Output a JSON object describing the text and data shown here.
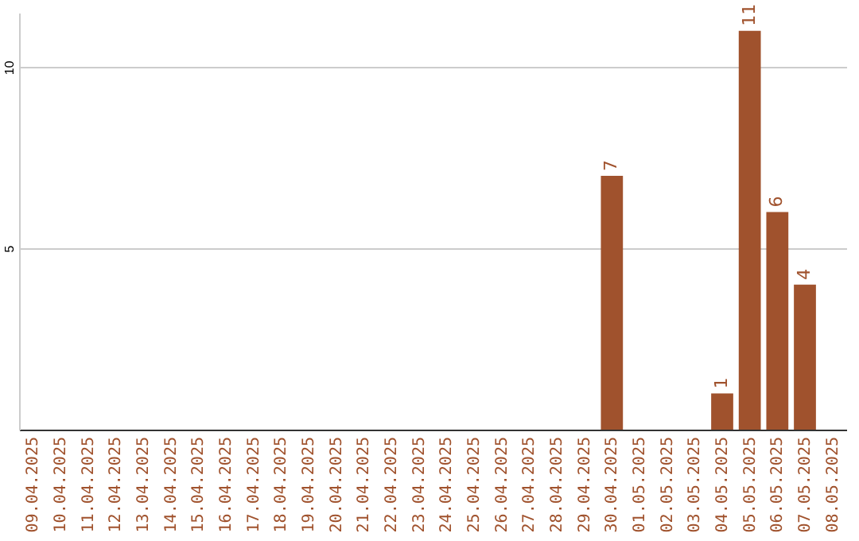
{
  "chart_data": {
    "type": "bar",
    "categories": [
      "09.04.2025",
      "10.04.2025",
      "11.04.2025",
      "12.04.2025",
      "13.04.2025",
      "14.04.2025",
      "15.04.2025",
      "16.04.2025",
      "17.04.2025",
      "18.04.2025",
      "19.04.2025",
      "20.04.2025",
      "21.04.2025",
      "22.04.2025",
      "23.04.2025",
      "24.04.2025",
      "25.04.2025",
      "26.04.2025",
      "27.04.2025",
      "28.04.2025",
      "29.04.2025",
      "30.04.2025",
      "01.05.2025",
      "02.05.2025",
      "03.05.2025",
      "04.05.2025",
      "05.05.2025",
      "06.05.2025",
      "07.05.2025",
      "08.05.2025"
    ],
    "values": [
      0,
      0,
      0,
      0,
      0,
      0,
      0,
      0,
      0,
      0,
      0,
      0,
      0,
      0,
      0,
      0,
      0,
      0,
      0,
      0,
      0,
      7,
      0,
      0,
      0,
      1,
      11,
      6,
      4,
      0
    ],
    "value_labels": [
      null,
      null,
      null,
      null,
      null,
      null,
      null,
      null,
      null,
      null,
      null,
      null,
      null,
      null,
      null,
      null,
      null,
      null,
      null,
      null,
      null,
      "7",
      null,
      null,
      null,
      "1",
      "11",
      "6",
      "4",
      null
    ],
    "color": "#a0522d",
    "ylim": [
      0,
      11.5
    ],
    "yticks": [
      5,
      10
    ],
    "grid": "y"
  }
}
